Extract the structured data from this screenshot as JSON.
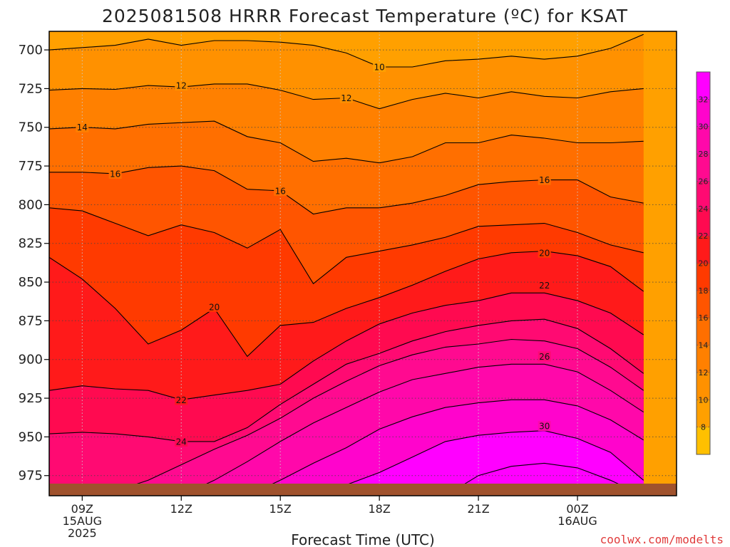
{
  "chart_data": {
    "type": "heatmap",
    "title": "2025081508 HRRR Forecast Temperature (ºC) for KSAT",
    "xlabel": "Forecast Time (UTC)",
    "ylabel": "",
    "credit": "coolwx.com/modelts",
    "y_axis": {
      "scale": "pressure (hPa), inverted",
      "range": [
        988,
        688
      ],
      "tick_labels": [
        "700",
        "725",
        "750",
        "775",
        "800",
        "825",
        "850",
        "875",
        "900",
        "925",
        "950",
        "975"
      ]
    },
    "x_axis": {
      "range": [
        8,
        27
      ],
      "ticks": [
        {
          "x": 9,
          "labels": [
            "09Z",
            "15AUG",
            "2025"
          ]
        },
        {
          "x": 12,
          "labels": [
            "12Z"
          ]
        },
        {
          "x": 15,
          "labels": [
            "15Z"
          ]
        },
        {
          "x": 18,
          "labels": [
            "18Z"
          ]
        },
        {
          "x": 21,
          "labels": [
            "21Z"
          ]
        },
        {
          "x": 24,
          "labels": [
            "00Z",
            "16AUG"
          ]
        }
      ]
    },
    "grid": true,
    "colorbar": {
      "levels": [
        6,
        8,
        10,
        12,
        14,
        16,
        18,
        20,
        22,
        24,
        26,
        28,
        30,
        32,
        34
      ],
      "tick_labels": [
        "8",
        "10",
        "12",
        "14",
        "16",
        "18",
        "20",
        "22",
        "24",
        "26",
        "28",
        "30",
        "32"
      ],
      "colors": [
        "#ffc000",
        "#ffa000",
        "#ff9100",
        "#ff8000",
        "#ff6f00",
        "#ff5500",
        "#ff3a00",
        "#ff1a1a",
        "#ff0a50",
        "#ff0a72",
        "#ff0a90",
        "#ff08aa",
        "#ff04cc",
        "#ff00ff"
      ]
    },
    "surface_color": "#a0522d",
    "contours": [
      {
        "value": 10,
        "points": [
          [
            8,
            700
          ],
          [
            10,
            697
          ],
          [
            11,
            693
          ],
          [
            12,
            697
          ],
          [
            13,
            694
          ],
          [
            14,
            694
          ],
          [
            15,
            695
          ],
          [
            16,
            697
          ],
          [
            17,
            702
          ],
          [
            18,
            711
          ],
          [
            19,
            711
          ],
          [
            20,
            707
          ],
          [
            21,
            706
          ],
          [
            22,
            704
          ],
          [
            23,
            706
          ],
          [
            24,
            704
          ],
          [
            25,
            699
          ],
          [
            26,
            690
          ]
        ]
      },
      {
        "value": 12,
        "points": [
          [
            8,
            726
          ],
          [
            9,
            725
          ],
          [
            10,
            725.5
          ],
          [
            11,
            723
          ],
          [
            12,
            724
          ],
          [
            13,
            722
          ],
          [
            14,
            722
          ],
          [
            15,
            726
          ],
          [
            16,
            732
          ],
          [
            17,
            731
          ],
          [
            18,
            738
          ],
          [
            19,
            732
          ],
          [
            20,
            728
          ],
          [
            21,
            731
          ],
          [
            22,
            727
          ],
          [
            23,
            730
          ],
          [
            24,
            731
          ],
          [
            25,
            727
          ],
          [
            26,
            725
          ]
        ]
      },
      {
        "value": 14,
        "points": [
          [
            8,
            751
          ],
          [
            9,
            750
          ],
          [
            10,
            751
          ],
          [
            11,
            748
          ],
          [
            12,
            747
          ],
          [
            13,
            746
          ],
          [
            14,
            756
          ],
          [
            15,
            760
          ],
          [
            16,
            772
          ],
          [
            17,
            770
          ],
          [
            18,
            773
          ],
          [
            19,
            769
          ],
          [
            20,
            760
          ],
          [
            21,
            760
          ],
          [
            22,
            755
          ],
          [
            23,
            757
          ],
          [
            24,
            760
          ],
          [
            25,
            760
          ],
          [
            26,
            759
          ]
        ]
      },
      {
        "value": 16,
        "points": [
          [
            8,
            779
          ],
          [
            9,
            779
          ],
          [
            10,
            780
          ],
          [
            11,
            776
          ],
          [
            12,
            775
          ],
          [
            13,
            778
          ],
          [
            14,
            790
          ],
          [
            15,
            791
          ],
          [
            16,
            806
          ],
          [
            17,
            802
          ],
          [
            18,
            802
          ],
          [
            19,
            799
          ],
          [
            20,
            794
          ],
          [
            21,
            787
          ],
          [
            22,
            785
          ],
          [
            23,
            784
          ],
          [
            24,
            784
          ],
          [
            25,
            795
          ],
          [
            26,
            799
          ]
        ]
      },
      {
        "value": 18,
        "points": [
          [
            8,
            802
          ],
          [
            9,
            804
          ],
          [
            10,
            812
          ],
          [
            11,
            820
          ],
          [
            12,
            813
          ],
          [
            13,
            818
          ],
          [
            14,
            828
          ],
          [
            15,
            816
          ],
          [
            16,
            851
          ],
          [
            17,
            834
          ],
          [
            18,
            830
          ],
          [
            19,
            826
          ],
          [
            20,
            821
          ],
          [
            21,
            814
          ],
          [
            22,
            813
          ],
          [
            23,
            812
          ],
          [
            24,
            818
          ],
          [
            25,
            826
          ],
          [
            26,
            831
          ]
        ]
      },
      {
        "value": 20,
        "points": [
          [
            8,
            834
          ],
          [
            9,
            848
          ],
          [
            10,
            867
          ],
          [
            11,
            890
          ],
          [
            12,
            881
          ],
          [
            13,
            867
          ],
          [
            14,
            898
          ],
          [
            15,
            878
          ],
          [
            16,
            876
          ],
          [
            17,
            867
          ],
          [
            18,
            860
          ],
          [
            19,
            852
          ],
          [
            20,
            843
          ],
          [
            21,
            835
          ],
          [
            22,
            831
          ],
          [
            23,
            830
          ],
          [
            24,
            833
          ],
          [
            25,
            840
          ],
          [
            26,
            856
          ]
        ]
      },
      {
        "value": 22,
        "points": [
          [
            8,
            920
          ],
          [
            9,
            917
          ],
          [
            10,
            919
          ],
          [
            11,
            920
          ],
          [
            12,
            926
          ],
          [
            13,
            923
          ],
          [
            14,
            920
          ],
          [
            15,
            916
          ],
          [
            16,
            901
          ],
          [
            17,
            888
          ],
          [
            18,
            877
          ],
          [
            19,
            870
          ],
          [
            20,
            865
          ],
          [
            21,
            862
          ],
          [
            22,
            857
          ],
          [
            23,
            857
          ],
          [
            24,
            862
          ],
          [
            25,
            870
          ],
          [
            26,
            884
          ]
        ]
      },
      {
        "value": 24,
        "points": [
          [
            8,
            948
          ],
          [
            9,
            947
          ],
          [
            10,
            948
          ],
          [
            11,
            950
          ],
          [
            12,
            953
          ],
          [
            13,
            953
          ],
          [
            14,
            944
          ],
          [
            15,
            929
          ],
          [
            16,
            916
          ],
          [
            17,
            903
          ],
          [
            18,
            896
          ],
          [
            19,
            888
          ],
          [
            20,
            882
          ],
          [
            21,
            878
          ],
          [
            22,
            875
          ],
          [
            23,
            874
          ],
          [
            24,
            880
          ],
          [
            25,
            893
          ],
          [
            26,
            909
          ]
        ]
      },
      {
        "value": 26,
        "points": [
          [
            9,
            988
          ],
          [
            10,
            985
          ],
          [
            11,
            978
          ],
          [
            12,
            968
          ],
          [
            13,
            958
          ],
          [
            14,
            949
          ],
          [
            15,
            938
          ],
          [
            16,
            925
          ],
          [
            17,
            914
          ],
          [
            18,
            904
          ],
          [
            19,
            897
          ],
          [
            20,
            892
          ],
          [
            21,
            890
          ],
          [
            22,
            887
          ],
          [
            23,
            888
          ],
          [
            24,
            893
          ],
          [
            25,
            905
          ],
          [
            26,
            920
          ]
        ]
      },
      {
        "value": 28,
        "points": [
          [
            12,
            988
          ],
          [
            13,
            978
          ],
          [
            14,
            966
          ],
          [
            15,
            953
          ],
          [
            16,
            941
          ],
          [
            17,
            931
          ],
          [
            18,
            921
          ],
          [
            19,
            913
          ],
          [
            20,
            909
          ],
          [
            21,
            905
          ],
          [
            22,
            903
          ],
          [
            23,
            903
          ],
          [
            24,
            908
          ],
          [
            25,
            920
          ],
          [
            26,
            934
          ]
        ]
      },
      {
        "value": 30,
        "points": [
          [
            14,
            988
          ],
          [
            15,
            978
          ],
          [
            16,
            967
          ],
          [
            17,
            957
          ],
          [
            18,
            945
          ],
          [
            19,
            937
          ],
          [
            20,
            931
          ],
          [
            21,
            928
          ],
          [
            22,
            926
          ],
          [
            23,
            926
          ],
          [
            24,
            930
          ],
          [
            25,
            939
          ],
          [
            26,
            952
          ]
        ]
      },
      {
        "value": 32,
        "points": [
          [
            16,
            988
          ],
          [
            17,
            981
          ],
          [
            18,
            973
          ],
          [
            19,
            963
          ],
          [
            20,
            953
          ],
          [
            21,
            949
          ],
          [
            22,
            947
          ],
          [
            23,
            946
          ],
          [
            24,
            951
          ],
          [
            25,
            960
          ],
          [
            26,
            978
          ]
        ]
      },
      {
        "value": 34,
        "points": [
          [
            20,
            988
          ],
          [
            21,
            975
          ],
          [
            22,
            969
          ],
          [
            23,
            967
          ],
          [
            24,
            970
          ],
          [
            25,
            978
          ],
          [
            26,
            988
          ]
        ]
      }
    ],
    "contour_labels": [
      {
        "text": "10",
        "x": 18,
        "p": 711
      },
      {
        "text": "12",
        "x": 12,
        "p": 723
      },
      {
        "text": "12",
        "x": 17,
        "p": 731
      },
      {
        "text": "14",
        "x": 9,
        "p": 750
      },
      {
        "text": "16",
        "x": 10,
        "p": 780
      },
      {
        "text": "16",
        "x": 15,
        "p": 791
      },
      {
        "text": "16",
        "x": 23,
        "p": 784
      },
      {
        "text": "20",
        "x": 13,
        "p": 866
      },
      {
        "text": "20",
        "x": 23,
        "p": 831
      },
      {
        "text": "22",
        "x": 23,
        "p": 852
      },
      {
        "text": "22",
        "x": 12,
        "p": 926
      },
      {
        "text": "24",
        "x": 12,
        "p": 953
      },
      {
        "text": "26",
        "x": 23,
        "p": 898
      },
      {
        "text": "30",
        "x": 23,
        "p": 943
      }
    ]
  }
}
